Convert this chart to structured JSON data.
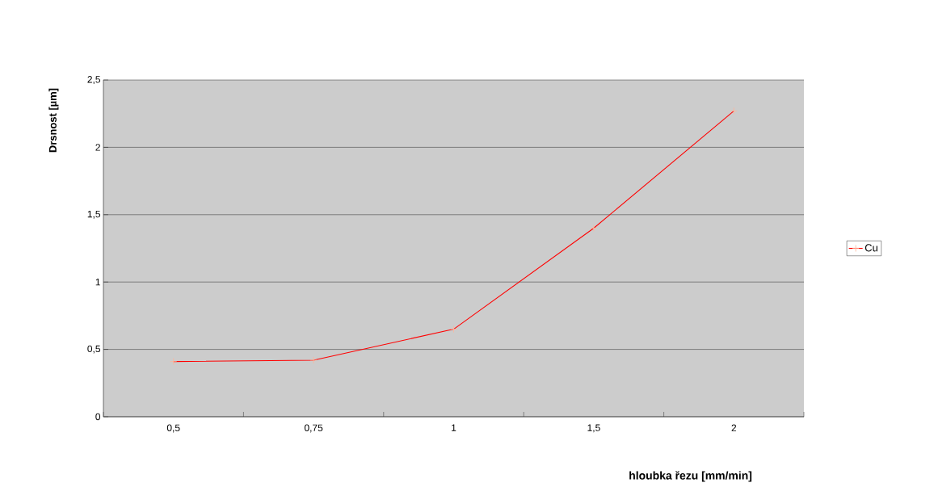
{
  "chart_data": {
    "type": "line",
    "xlabel": "hloubka řezu [mm/min]",
    "ylabel": "Drsnost [µm]",
    "categories": [
      "0,5",
      "0,75",
      "1",
      "1,5",
      "2"
    ],
    "series": [
      {
        "name": "Cu",
        "color": "#ff0000",
        "values": [
          0.41,
          0.42,
          0.65,
          1.4,
          2.27
        ]
      }
    ],
    "ylim": [
      0,
      2.5
    ],
    "yticks": [
      0,
      {
        "value": 0.5,
        "label": "0,5"
      },
      1,
      {
        "value": 1.5,
        "label": "1,5"
      },
      2,
      {
        "value": 2.5,
        "label": "2,5"
      }
    ],
    "grid": "y",
    "legend": "right",
    "marker": "cross",
    "line_style": "solid"
  }
}
